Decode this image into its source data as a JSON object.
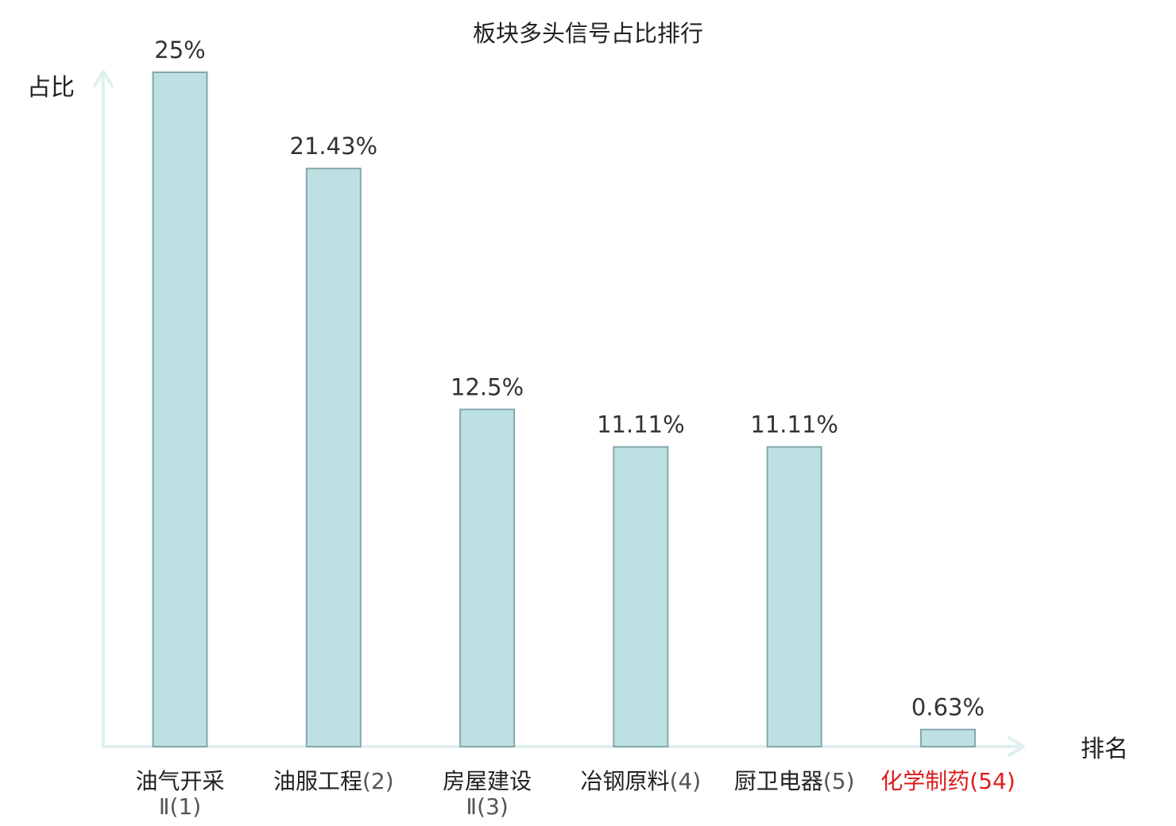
{
  "chart_data": {
    "type": "bar",
    "title": "板块多头信号占比排行",
    "xlabel": "排名",
    "ylabel": "占比",
    "ylim": [
      0,
      25
    ],
    "grid": false,
    "categories": [
      {
        "name": "油气开采",
        "rank_line": "Ⅱ(1)",
        "rank": "",
        "highlight": false
      },
      {
        "name": "油服工程",
        "rank_line": "",
        "rank": "(2)",
        "highlight": false
      },
      {
        "name": "房屋建设",
        "rank_line": "Ⅱ(3)",
        "rank": "",
        "highlight": false
      },
      {
        "name": "冶钢原料",
        "rank_line": "",
        "rank": "(4)",
        "highlight": false
      },
      {
        "name": "厨卫电器",
        "rank_line": "",
        "rank": "(5)",
        "highlight": false
      },
      {
        "name": "化学制药",
        "rank_line": "",
        "rank": "(54)",
        "highlight": true
      }
    ],
    "values": [
      25,
      21.43,
      12.5,
      11.11,
      11.11,
      0.63
    ],
    "value_labels": [
      "25%",
      "21.43%",
      "12.5%",
      "11.11%",
      "11.11%",
      "0.63%"
    ]
  },
  "colors": {
    "bar_fill": "#bde0e3",
    "bar_stroke": "#85a7a9",
    "axis": "#dff0ee",
    "text": "#222222",
    "value_text": "#333333",
    "rank_text": "#555555",
    "highlight": "#dd1c1c"
  }
}
